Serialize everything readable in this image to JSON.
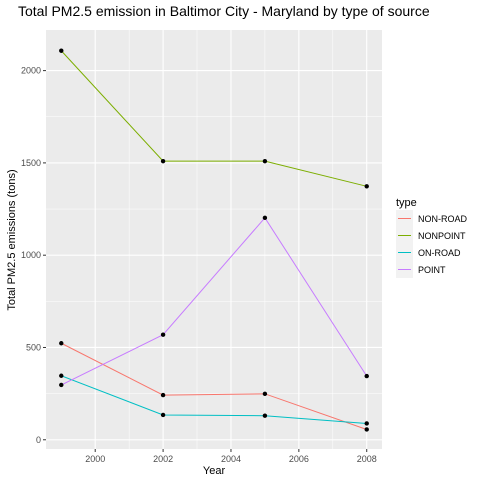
{
  "chart_data": {
    "type": "line",
    "title": "Total PM2.5 emission in Baltimor City - Maryland by type of source",
    "xlabel": "Year",
    "ylabel": "Total PM2.5 emissions (tons)",
    "x": [
      1999,
      2002,
      2005,
      2008
    ],
    "xticks": [
      2000,
      2002,
      2004,
      2006,
      2008
    ],
    "yticks": [
      0,
      500,
      1000,
      1500,
      2000
    ],
    "xlim": [
      1998.55,
      2008.45
    ],
    "ylim": [
      -50,
      2220
    ],
    "grid": true,
    "legend_position": "right",
    "legend_title": "type",
    "series": [
      {
        "name": "NON-ROAD",
        "color": "#F8766D",
        "values": [
          522.94,
          242.2,
          248.93,
          55.82
        ]
      },
      {
        "name": "NONPOINT",
        "color": "#7CAE00",
        "values": [
          2107.63,
          1509.5,
          1509.5,
          1373.21
        ]
      },
      {
        "name": "ON-ROAD",
        "color": "#00BFC4",
        "values": [
          346.82,
          134.31,
          130.43,
          88.28
        ]
      },
      {
        "name": "POINT",
        "color": "#C77CFF",
        "values": [
          296.8,
          569.26,
          1202.49,
          344.98
        ]
      }
    ]
  }
}
